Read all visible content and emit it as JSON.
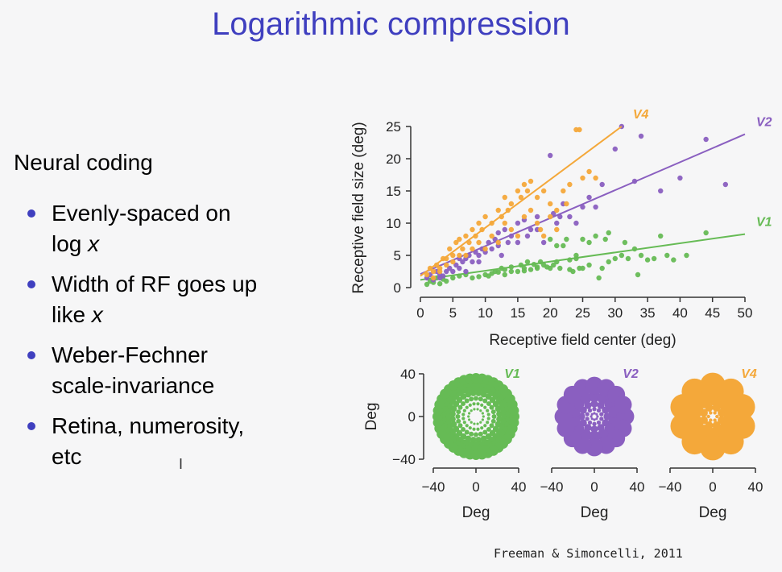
{
  "slide": {
    "title": "Logarithmic compression",
    "heading": "Neural coding",
    "bullets": [
      [
        "Evenly-spaced on",
        "log x"
      ],
      [
        "Width of RF goes up",
        "like x"
      ],
      [
        "Weber-Fechner",
        "scale-invariance"
      ],
      [
        "Retina, numerosity,",
        "etc"
      ]
    ],
    "citation": "Freeman & Simoncelli, 2011"
  },
  "chart_data": [
    {
      "type": "scatter",
      "xlabel": "Receptive field center (deg)",
      "ylabel": "Receptive field size (deg)",
      "xlim": [
        0,
        50
      ],
      "ylim": [
        0,
        25
      ],
      "xticks": [
        0,
        5,
        10,
        15,
        20,
        25,
        30,
        35,
        40,
        45,
        50
      ],
      "yticks": [
        0,
        5,
        10,
        15,
        20,
        25
      ],
      "series": [
        {
          "name": "V1",
          "color": "#66bb55",
          "fit": [
            [
              0,
              1.2
            ],
            [
              50,
              8.3
            ]
          ],
          "points": [
            [
              1,
              0.5
            ],
            [
              1.5,
              1
            ],
            [
              2,
              0.8
            ],
            [
              2.5,
              1.5
            ],
            [
              3,
              0.6
            ],
            [
              3.5,
              1.3
            ],
            [
              4,
              1
            ],
            [
              5,
              1.5
            ],
            [
              6,
              1.8
            ],
            [
              7,
              2
            ],
            [
              8,
              1.5
            ],
            [
              9,
              1.7
            ],
            [
              10,
              2
            ],
            [
              11,
              2.2
            ],
            [
              12,
              2.4
            ],
            [
              12.5,
              3
            ],
            [
              13,
              2.8
            ],
            [
              14,
              3.2
            ],
            [
              15,
              2.5
            ],
            [
              15.5,
              3.5
            ],
            [
              16,
              3
            ],
            [
              16.5,
              4
            ],
            [
              17,
              2.8
            ],
            [
              17.5,
              3.6
            ],
            [
              18,
              3
            ],
            [
              18.5,
              4
            ],
            [
              19,
              3.5
            ],
            [
              19.5,
              3.2
            ],
            [
              20,
              7.5
            ],
            [
              20.5,
              3.5
            ],
            [
              21,
              4
            ],
            [
              21.5,
              3
            ],
            [
              22,
              6.5
            ],
            [
              22.5,
              7.5
            ],
            [
              23,
              4.3
            ],
            [
              23.5,
              2.5
            ],
            [
              24,
              5
            ],
            [
              24.5,
              3
            ],
            [
              25,
              3
            ],
            [
              26,
              7
            ],
            [
              27,
              8
            ],
            [
              27.5,
              1.5
            ],
            [
              28,
              3
            ],
            [
              28.5,
              7.5
            ],
            [
              29,
              8.5
            ],
            [
              30,
              4.5
            ],
            [
              31,
              5
            ],
            [
              32,
              4.5
            ],
            [
              33,
              6
            ],
            [
              33.5,
              2
            ],
            [
              34,
              5
            ],
            [
              35,
              4.3
            ],
            [
              36,
              4.5
            ],
            [
              37,
              8
            ],
            [
              38,
              5
            ],
            [
              39,
              4.3
            ],
            [
              41,
              5
            ],
            [
              44,
              8.5
            ],
            [
              18,
              3.2
            ],
            [
              16,
              2.6
            ],
            [
              14,
              2.5
            ],
            [
              13,
              2
            ],
            [
              11.5,
              2.5
            ],
            [
              10.5,
              1.8
            ],
            [
              20,
              3
            ],
            [
              24,
              4.5
            ],
            [
              26,
              3.5
            ],
            [
              21,
              6.5
            ],
            [
              23,
              2.8
            ],
            [
              25,
              7.5
            ],
            [
              29,
              4
            ],
            [
              31.5,
              7
            ]
          ]
        },
        {
          "name": "V2",
          "color": "#8a5fc0",
          "fit": [
            [
              0,
              2.1
            ],
            [
              50,
              23.8
            ]
          ],
          "points": [
            [
              1,
              1.5
            ],
            [
              1.5,
              2
            ],
            [
              2,
              1.2
            ],
            [
              2.5,
              2.5
            ],
            [
              3,
              2
            ],
            [
              3.5,
              1.8
            ],
            [
              4,
              2.5
            ],
            [
              4.5,
              3
            ],
            [
              5,
              2.5
            ],
            [
              5.5,
              3.5
            ],
            [
              6,
              3
            ],
            [
              6.5,
              4
            ],
            [
              7,
              4.5
            ],
            [
              7.5,
              5
            ],
            [
              8,
              4
            ],
            [
              8.5,
              5.5
            ],
            [
              9,
              5
            ],
            [
              9.5,
              6
            ],
            [
              10,
              5.5
            ],
            [
              10.5,
              7
            ],
            [
              11,
              6
            ],
            [
              11.5,
              7.5
            ],
            [
              12,
              6.5
            ],
            [
              12.5,
              5
            ],
            [
              13,
              9
            ],
            [
              13.5,
              7
            ],
            [
              14,
              8
            ],
            [
              15,
              10
            ],
            [
              16,
              10.5
            ],
            [
              17,
              9
            ],
            [
              18,
              11
            ],
            [
              19,
              7
            ],
            [
              20,
              20.5
            ],
            [
              20.5,
              11.5
            ],
            [
              21,
              10
            ],
            [
              22,
              13
            ],
            [
              23,
              11
            ],
            [
              24,
              10
            ],
            [
              25,
              12.5
            ],
            [
              26,
              14
            ],
            [
              27,
              12.5
            ],
            [
              28,
              16
            ],
            [
              30,
              21.5
            ],
            [
              31,
              25
            ],
            [
              33,
              16.5
            ],
            [
              34,
              23.5
            ],
            [
              37,
              15
            ],
            [
              40,
              17
            ],
            [
              44,
              23
            ],
            [
              47,
              16
            ],
            [
              15,
              7
            ],
            [
              16.5,
              8
            ],
            [
              12,
              8.5
            ],
            [
              9,
              4
            ],
            [
              6,
              4.5
            ],
            [
              7,
              2.5
            ],
            [
              3,
              1.5
            ],
            [
              18,
              9
            ],
            [
              21.5,
              11
            ]
          ]
        },
        {
          "name": "V4",
          "color": "#f4a83a",
          "fit": [
            [
              0,
              1.8
            ],
            [
              31,
              25
            ]
          ],
          "points": [
            [
              1,
              2
            ],
            [
              1.5,
              3
            ],
            [
              2,
              2.5
            ],
            [
              2.5,
              3.5
            ],
            [
              3,
              3
            ],
            [
              3.5,
              4.5
            ],
            [
              4,
              3.5
            ],
            [
              4.5,
              6
            ],
            [
              5,
              5
            ],
            [
              5.5,
              7
            ],
            [
              6,
              7.5
            ],
            [
              6.5,
              6
            ],
            [
              7,
              8
            ],
            [
              7.5,
              7
            ],
            [
              8,
              9
            ],
            [
              8.5,
              8
            ],
            [
              9,
              10
            ],
            [
              9.5,
              9
            ],
            [
              10,
              11
            ],
            [
              11,
              10
            ],
            [
              12,
              12
            ],
            [
              12.5,
              11
            ],
            [
              13,
              14
            ],
            [
              13.5,
              12
            ],
            [
              14,
              13
            ],
            [
              15,
              15
            ],
            [
              15.5,
              14
            ],
            [
              16,
              16
            ],
            [
              16.5,
              15
            ],
            [
              17,
              16.5
            ],
            [
              18,
              14
            ],
            [
              19,
              15
            ],
            [
              20,
              13
            ],
            [
              21,
              12
            ],
            [
              22,
              15
            ],
            [
              23,
              16
            ],
            [
              24,
              24.5
            ],
            [
              24.5,
              24.5
            ],
            [
              25,
              17
            ],
            [
              26,
              18
            ],
            [
              27,
              17
            ],
            [
              19,
              8
            ],
            [
              20,
              11
            ],
            [
              18,
              10
            ],
            [
              17,
              12
            ],
            [
              16,
              11
            ],
            [
              14,
              9
            ],
            [
              13,
              10
            ],
            [
              11,
              8
            ],
            [
              10,
              6
            ],
            [
              9,
              7
            ],
            [
              8,
              6
            ],
            [
              7,
              5
            ],
            [
              6,
              5
            ],
            [
              5,
              4
            ],
            [
              4,
              4.5
            ],
            [
              3,
              2.5
            ],
            [
              2,
              1.5
            ],
            [
              18.5,
              9
            ],
            [
              21,
              9
            ],
            [
              22.5,
              13
            ],
            [
              15,
              8
            ],
            [
              12,
              7
            ]
          ]
        }
      ]
    },
    {
      "type": "scatter",
      "title": "V1",
      "xlabel": "Deg",
      "ylabel": "Deg",
      "xlim": [
        -40,
        40
      ],
      "ylim": [
        -40,
        40
      ],
      "xticks": [
        -40,
        0,
        40
      ],
      "yticks": [
        40,
        0,
        -40
      ],
      "color": "#66bb55",
      "description_values": {
        "rings": [
          7,
          12,
          17,
          22,
          27,
          32,
          36
        ],
        "counts": [
          14,
          20,
          24,
          28,
          32,
          36,
          40
        ],
        "dot_size_scale": 0.11
      }
    },
    {
      "type": "scatter",
      "title": "V2",
      "xlabel": "Deg",
      "xlim": [
        -40,
        40
      ],
      "xticks": [
        -40,
        0,
        40
      ],
      "color": "#8a5fc0",
      "description_values": {
        "rings": [
          3,
          7,
          12,
          19,
          29
        ],
        "counts": [
          8,
          10,
          12,
          14,
          16
        ],
        "dot_size_scale": 0.22
      }
    },
    {
      "type": "scatter",
      "title": "V4",
      "xlabel": "Deg",
      "xlim": [
        -40,
        40
      ],
      "xticks": [
        -40,
        0,
        40
      ],
      "color": "#f4a83a",
      "description_values": {
        "rings": [
          4,
          9,
          17,
          29
        ],
        "counts": [
          6,
          8,
          9,
          10
        ],
        "dot_size_scale": 0.32
      }
    }
  ]
}
